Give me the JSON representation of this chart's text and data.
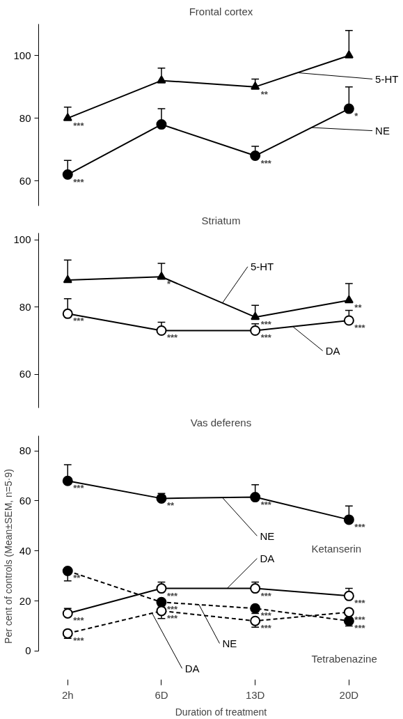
{
  "chart_data": [
    {
      "type": "line",
      "title": "Frontal cortex",
      "categories": [
        null,
        null,
        null,
        null
      ],
      "ylim": [
        52,
        110
      ],
      "yticks": [
        60,
        80,
        100
      ],
      "tick_labels": "y",
      "grid": false,
      "line_style": "solid",
      "series": [
        {
          "name": "5-HT",
          "color": "#000000",
          "marker": "triangle",
          "values": [
            80,
            92,
            90,
            100
          ],
          "errors": [
            [
              80,
              83.5
            ],
            [
              92,
              96
            ],
            [
              90,
              92.5
            ],
            [
              100,
              108
            ]
          ],
          "value_labels": [
            "***",
            null,
            "**",
            null
          ]
        },
        {
          "name": "NE",
          "color": "#000000",
          "marker": "circle",
          "values": [
            62,
            78,
            68,
            83
          ],
          "errors": [
            [
              62,
              66.5
            ],
            [
              78,
              83
            ],
            [
              68,
              71
            ],
            [
              83,
              90
            ]
          ],
          "value_labels": [
            "***",
            null,
            "***",
            "*"
          ]
        }
      ]
    },
    {
      "type": "line",
      "title": "Striatum",
      "categories": [
        null,
        null,
        null,
        null
      ],
      "ylim": [
        50,
        102
      ],
      "yticks": [
        60,
        80,
        100
      ],
      "tick_labels": "y",
      "grid": false,
      "line_style": "solid",
      "series": [
        {
          "name": "5-HT",
          "color": "#000000",
          "marker": "triangle",
          "values": [
            88,
            89,
            77,
            82
          ],
          "errors": [
            [
              88,
              94
            ],
            [
              89,
              93
            ],
            [
              77,
              80.5
            ],
            [
              82,
              87
            ]
          ],
          "value_labels": [
            null,
            "*",
            "***",
            "**"
          ]
        },
        {
          "name": "DA",
          "color": "#000000",
          "marker": "circle_open",
          "values": [
            78,
            73,
            73,
            76
          ],
          "errors": [
            [
              78,
              82.5
            ],
            [
              73,
              75.5
            ],
            [
              73,
              75
            ],
            [
              76,
              79
            ]
          ],
          "value_labels": [
            "***",
            "***",
            "***",
            "***"
          ]
        }
      ]
    },
    {
      "type": "line",
      "title": "Vas deferens",
      "categories": [
        "2h",
        "6D",
        "13D",
        "20D"
      ],
      "xlabel": "Duration of treatment",
      "ylabel": "Per cent of controls (Mean±SEM, n=5·9)",
      "ylim": [
        0,
        86
      ],
      "yticks": [
        0,
        20,
        40,
        60,
        80
      ],
      "grid": false,
      "annotations": [
        "Ketanserin",
        "Tetrabenazine"
      ],
      "series": [
        {
          "name": "NE",
          "color": "#000000",
          "marker": "circle",
          "line_style": "solid",
          "values": [
            68,
            61,
            61.5,
            52.5
          ],
          "errors": [
            [
              68,
              74.5
            ],
            [
              61,
              63
            ],
            [
              61.5,
              66.5
            ],
            [
              52.5,
              58
            ]
          ],
          "value_labels": [
            "***",
            "**",
            "***",
            "***"
          ]
        },
        {
          "name": "DA",
          "color": "#000000",
          "marker": "circle_open",
          "line_style": "solid",
          "values": [
            15,
            25,
            25,
            22
          ],
          "errors": [
            [
              15,
              17
            ],
            [
              25,
              27.5
            ],
            [
              25,
              27.5
            ],
            [
              22,
              25
            ]
          ],
          "value_labels": [
            "***",
            "***",
            "***",
            "***"
          ]
        },
        {
          "name": "NE",
          "color": "#000000",
          "marker": "circle",
          "line_style": "dashed",
          "values": [
            32,
            19.5,
            17,
            12
          ],
          "errors": [
            [
              28,
              32
            ],
            [
              18,
              19.5
            ],
            [
              15,
              17
            ],
            [
              10,
              12
            ]
          ],
          "value_labels": [
            "**",
            "***",
            "***",
            "***"
          ]
        },
        {
          "name": "DA",
          "color": "#000000",
          "marker": "circle_open",
          "line_style": "dashed",
          "values": [
            7,
            16,
            12,
            15.5
          ],
          "errors": [
            [
              5,
              7
            ],
            [
              13,
              16
            ],
            [
              9.5,
              12
            ],
            null
          ],
          "value_labels": [
            "***",
            "***",
            "***",
            "***"
          ]
        }
      ]
    }
  ]
}
